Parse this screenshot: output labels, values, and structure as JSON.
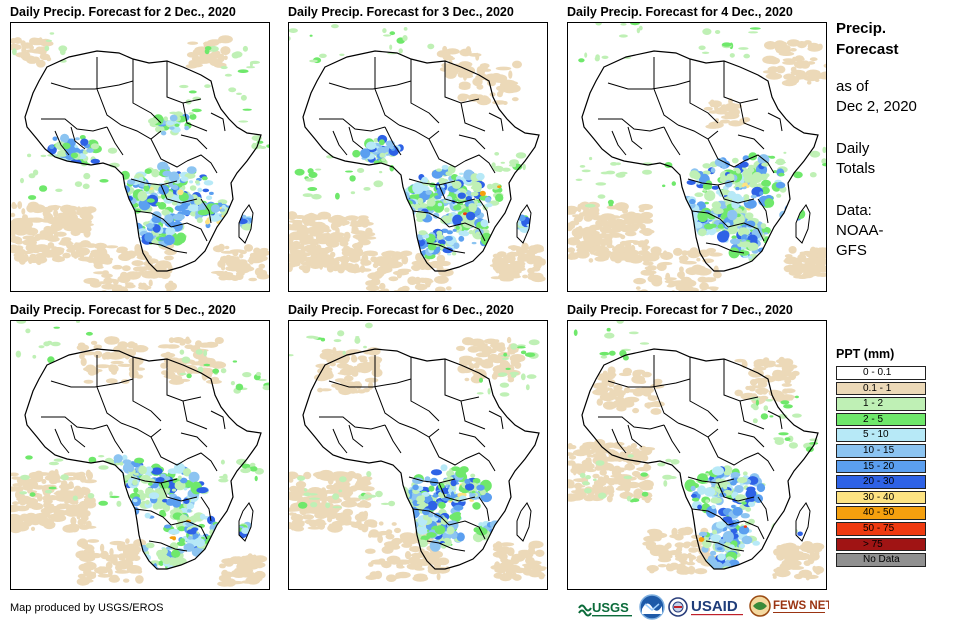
{
  "panels": [
    {
      "title": "Daily Precip. Forecast for 2 Dec., 2020",
      "day": 0
    },
    {
      "title": "Daily Precip. Forecast for 3 Dec., 2020",
      "day": 1
    },
    {
      "title": "Daily Precip. Forecast for 4 Dec., 2020",
      "day": 2
    },
    {
      "title": "Daily Precip. Forecast for 5 Dec., 2020",
      "day": 3
    },
    {
      "title": "Daily Precip. Forecast for 6 Dec., 2020",
      "day": 4
    },
    {
      "title": "Daily Precip. Forecast for 7 Dec., 2020",
      "day": 5
    }
  ],
  "sidebar": {
    "title_line1": "Precip.",
    "title_line2": "Forecast",
    "asof_line1": "as of",
    "asof_line2": "Dec 2, 2020",
    "totals_line1": "Daily",
    "totals_line2": "Totals",
    "data_line1": "Data:",
    "data_line2": "NOAA-",
    "data_line3": "GFS"
  },
  "legend": {
    "title": "PPT (mm)",
    "items": [
      {
        "label": "0 - 0.1",
        "color": "#ffffff"
      },
      {
        "label": "0.1 - 1",
        "color": "#ecd9b8"
      },
      {
        "label": "1 - 2",
        "color": "#bff0b5"
      },
      {
        "label": "2 - 5",
        "color": "#6fe86b"
      },
      {
        "label": "5 - 10",
        "color": "#b7e9f7"
      },
      {
        "label": "10 - 15",
        "color": "#8cc4f1"
      },
      {
        "label": "15 - 20",
        "color": "#5b9ff0"
      },
      {
        "label": "20 - 30",
        "color": "#2e62e6"
      },
      {
        "label": "30 - 40",
        "color": "#fde382"
      },
      {
        "label": "40 - 50",
        "color": "#f5a00e"
      },
      {
        "label": "50 - 75",
        "color": "#ef3a10"
      },
      {
        "label": "> 75",
        "color": "#a01414"
      },
      {
        "label": "No Data",
        "color": "#909090"
      }
    ]
  },
  "credit": "Map produced by USGS/EROS",
  "logos": {
    "usgs": "USGS",
    "usaid": "USAID",
    "fewsnet": "FEWS NET"
  }
}
